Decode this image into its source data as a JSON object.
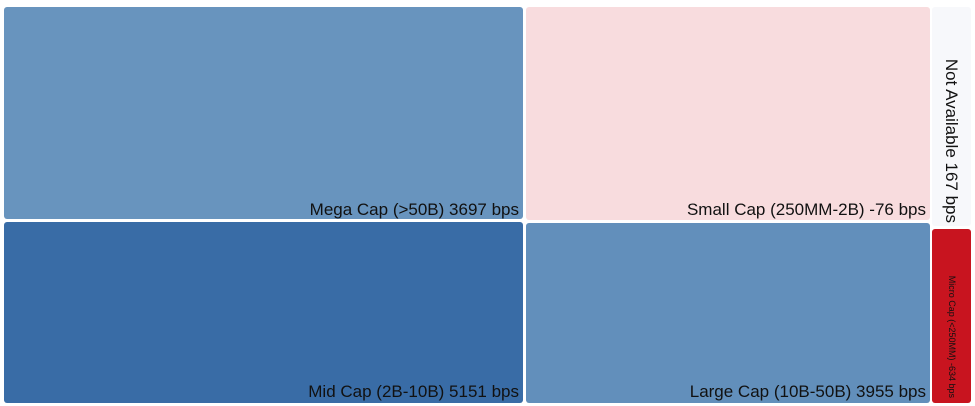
{
  "chart_data": {
    "type": "treemap",
    "title": "",
    "unit": "bps",
    "tiles": [
      {
        "id": "mega",
        "label": "Mega Cap (>50B)",
        "value": 3697,
        "display": "Mega Cap (>50B) 3697 bps",
        "color": "#6894be"
      },
      {
        "id": "small",
        "label": "Small Cap (250MM-2B)",
        "value": -76,
        "display": "Small Cap (250MM-2B) -76 bps",
        "color": "#f8dcde"
      },
      {
        "id": "na",
        "label": "Not Available",
        "value": 167,
        "display": "Not Available 167 bps",
        "color": "#f7f8fb"
      },
      {
        "id": "mid",
        "label": "Mid Cap (2B-10B)",
        "value": 5151,
        "display": "Mid Cap (2B-10B) 5151 bps",
        "color": "#396ca6"
      },
      {
        "id": "large",
        "label": "Large Cap (10B-50B)",
        "value": 3955,
        "display": "Large Cap (10B-50B) 3955 bps",
        "color": "#628fbb"
      },
      {
        "id": "micro",
        "label": "Micro Cap (<250MM)",
        "value": -634,
        "display": "Micro Cap (<250MM) -634 bps",
        "color": "#c8141f"
      }
    ]
  }
}
